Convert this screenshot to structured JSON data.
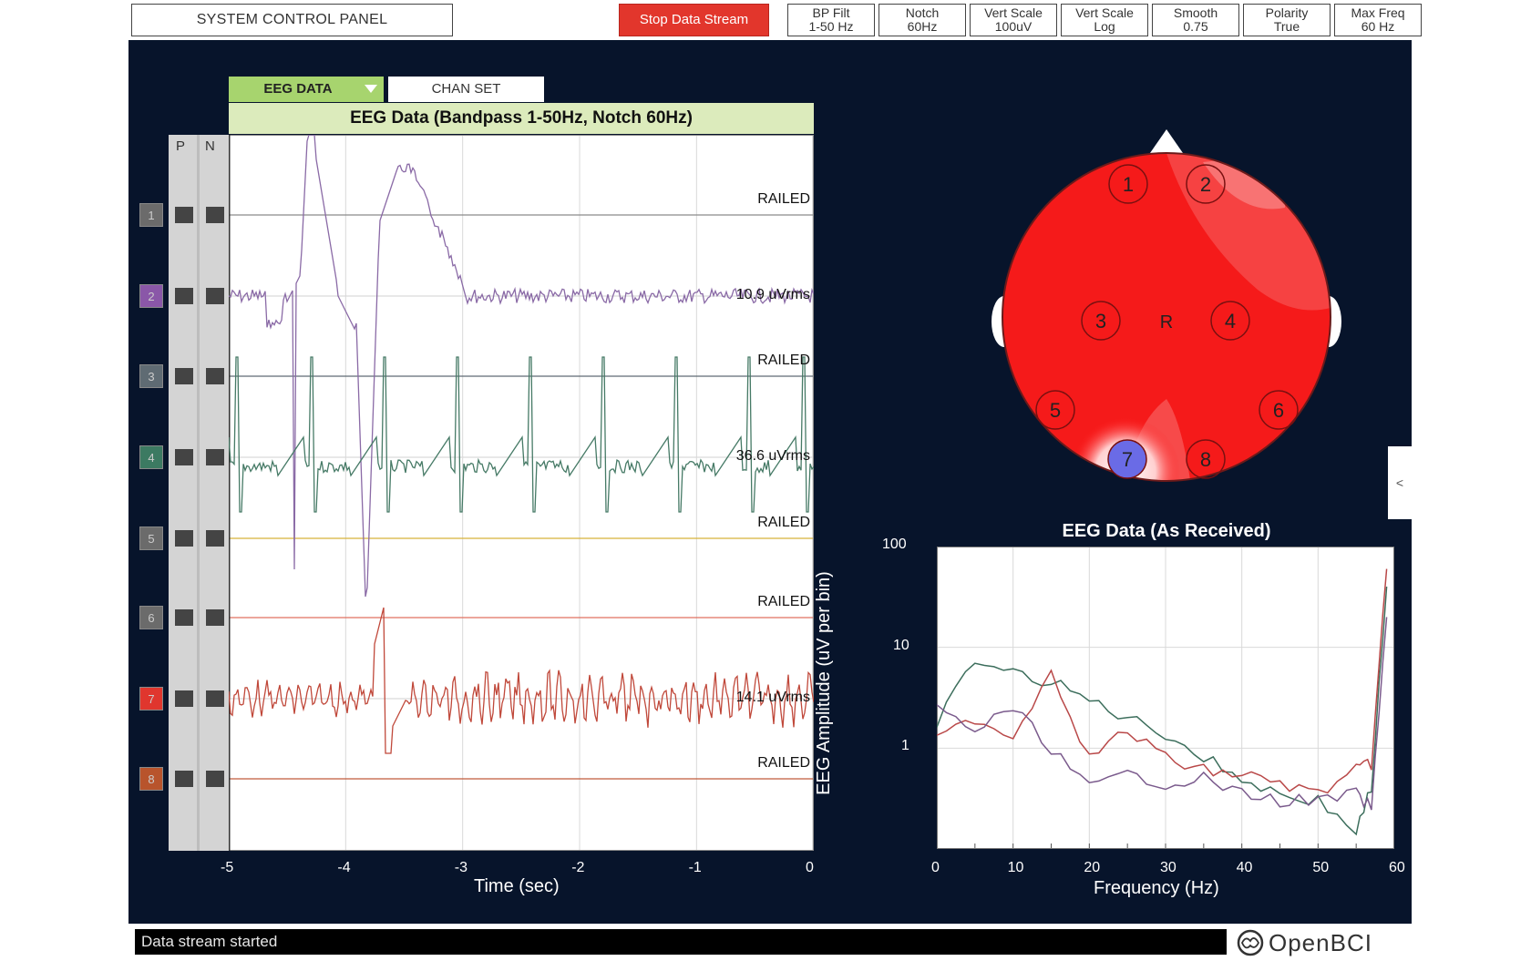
{
  "top_bar": {
    "system_control_panel": "SYSTEM CONTROL PANEL",
    "stop_button": "Stop Data Stream",
    "settings": [
      {
        "label": "BP Filt",
        "value": "1-50 Hz"
      },
      {
        "label": "Notch",
        "value": "60Hz"
      },
      {
        "label": "Vert Scale",
        "value": "100uV"
      },
      {
        "label": "Vert Scale",
        "value": "Log"
      },
      {
        "label": "Smooth",
        "value": "0.75"
      },
      {
        "label": "Polarity",
        "value": "True"
      },
      {
        "label": "Max Freq",
        "value": "60 Hz"
      }
    ]
  },
  "tabs": {
    "eeg_data": "EEG DATA",
    "chan_set": "CHAN SET"
  },
  "time_series": {
    "title": "EEG Data (Bandpass 1-50Hz, Notch 60Hz)",
    "pn_headers": {
      "p": "P",
      "n": "N"
    },
    "xlabel": "Time (sec)",
    "xticks": [
      "-5",
      "-4",
      "-3",
      "-2",
      "-1",
      "0"
    ],
    "channels": [
      {
        "num": "1",
        "color": "#6b6b6b",
        "label": "RAILED"
      },
      {
        "num": "2",
        "color": "#8a57a8",
        "label": "10.9 uVrms"
      },
      {
        "num": "3",
        "color": "#5f6b73",
        "label": "RAILED"
      },
      {
        "num": "4",
        "color": "#3c7a62",
        "label": "36.6 uVrms"
      },
      {
        "num": "5",
        "color": "#6b6b6b",
        "label": "RAILED"
      },
      {
        "num": "6",
        "color": "#6b6b6b",
        "label": "RAILED"
      },
      {
        "num": "7",
        "color": "#e0362e",
        "label": "14.1 uVrms"
      },
      {
        "num": "8",
        "color": "#b8542c",
        "label": "RAILED"
      }
    ],
    "trace_colors": {
      "ch1": "#8a8a8a",
      "ch2": "#8a6aa6",
      "ch3": "#5f6b73",
      "ch4": "#467a66",
      "ch5": "#d8b23a",
      "ch6": "#e07060",
      "ch7": "#c0483a",
      "ch8": "#c05a3a"
    }
  },
  "head_plot": {
    "center_label": "R",
    "electrodes": [
      "1",
      "2",
      "3",
      "4",
      "5",
      "6",
      "7",
      "8"
    ],
    "expand_tab": "<"
  },
  "fft": {
    "title": "EEG Data (As Received)",
    "ylabel": "EEG Amplitude (uV per bin)",
    "xlabel": "Frequency (Hz)",
    "xticks": [
      "0",
      "10",
      "20",
      "30",
      "40",
      "50",
      "60"
    ],
    "yticks": [
      "100",
      "10",
      "1"
    ]
  },
  "chart_data": {
    "type": "line",
    "title": "EEG Data (As Received)",
    "xlabel": "Frequency (Hz)",
    "ylabel": "EEG Amplitude (uV per bin)",
    "xlim": [
      0,
      60
    ],
    "ylim": [
      0.1,
      100
    ],
    "yscale": "log",
    "grid": true,
    "x": [
      0,
      5,
      10,
      15,
      20,
      25,
      30,
      35,
      40,
      45,
      50,
      55,
      57,
      59
    ],
    "series": [
      {
        "color": "#3c6e5c",
        "values": [
          1.8,
          7.5,
          5.5,
          4.5,
          3.0,
          2.0,
          1.4,
          0.8,
          0.5,
          0.35,
          0.3,
          0.15,
          0.4,
          40
        ]
      },
      {
        "color": "#b94848",
        "values": [
          1.2,
          2.0,
          1.3,
          6.0,
          0.8,
          1.5,
          0.8,
          0.6,
          0.55,
          0.45,
          0.35,
          0.6,
          0.7,
          60
        ]
      },
      {
        "color": "#7a5a8c",
        "values": [
          2.5,
          1.5,
          2.5,
          1.0,
          0.4,
          0.55,
          0.45,
          0.5,
          0.35,
          0.3,
          0.3,
          0.35,
          0.25,
          20
        ]
      }
    ]
  },
  "status": {
    "message": "Data stream started"
  },
  "brand": {
    "name": "OpenBCI"
  }
}
